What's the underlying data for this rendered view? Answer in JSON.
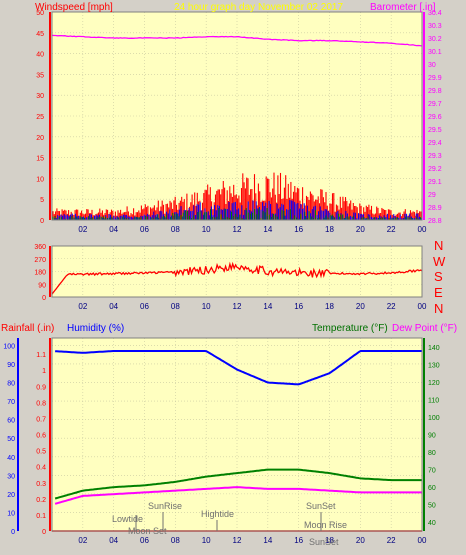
{
  "colors": {
    "plot_bg": "#ffffc0",
    "page_bg": "#d4d0c8",
    "grid": "#c8c8a0",
    "red": "#ff0000",
    "blue": "#0000ff",
    "green": "#008000",
    "magenta": "#ff00ff",
    "darkgreen": "#007000",
    "title": "#ffff00",
    "annot": "#707070"
  },
  "title": "24 hour graph day   November 02 2017",
  "x_ticks": [
    "02",
    "04",
    "06",
    "08",
    "10",
    "12",
    "14",
    "16",
    "18",
    "20",
    "22",
    "00"
  ],
  "wind": {
    "left_label": "Windspeed [mph]",
    "right_label": "Barometer [.in]",
    "left_ticks": [
      0,
      5,
      10,
      15,
      20,
      25,
      30,
      35,
      40,
      45,
      50
    ],
    "right_ticks": [
      "28.8",
      "28.9",
      "29",
      "29.1",
      "29.2",
      "29.3",
      "29.4",
      "29.5",
      "29.6",
      "29.7",
      "29.8",
      "29.9",
      "30",
      "30.1",
      "30.2",
      "30.3",
      "30.4"
    ]
  },
  "dir": {
    "left_ticks": [
      0,
      90,
      180,
      270,
      360
    ],
    "compass": [
      "N",
      "W",
      "S",
      "E",
      "N"
    ]
  },
  "bottom": {
    "rain_label": "Rainfall (.in)",
    "hum_label": "Humidity (%)",
    "temp_label": "Temperature (°F)",
    "dew_label": "Dew Point (°F)",
    "hum_ticks": [
      0,
      10,
      20,
      30,
      40,
      50,
      60,
      70,
      80,
      90,
      100
    ],
    "rain_ticks": [
      "0",
      "0.1",
      "0.2",
      "0.3",
      "0.4",
      "0.5",
      "0.6",
      "0.7",
      "0.8",
      "0.9",
      "1",
      "1.1"
    ],
    "temp_ticks": [
      40,
      50,
      60,
      70,
      80,
      90,
      100,
      110,
      120,
      130,
      140
    ],
    "annotations": {
      "lowtide": "Lowtide",
      "moonset": "Moon Set",
      "sunrise": "SunRise",
      "hightide": "Hightide",
      "sunset": "SunSet",
      "moonrise": "Moon Rise",
      "sunset2": "SunSet"
    }
  },
  "chart_data": [
    {
      "type": "line",
      "title": "24 hour graph day   November 02 2017",
      "xlabel": "",
      "ylabel": "Windspeed [mph]",
      "y2label": "Barometer [.in]",
      "x": [
        0,
        2,
        4,
        6,
        8,
        10,
        12,
        14,
        16,
        18,
        20,
        22,
        24
      ],
      "ylim": [
        0,
        50
      ],
      "y2lim": [
        28.8,
        30.4
      ],
      "series": [
        {
          "axis": "right",
          "values": [
            30.22,
            30.21,
            30.2,
            30.2,
            30.2,
            30.21,
            30.21,
            30.19,
            30.18,
            30.18,
            30.17,
            30.16,
            30.14
          ]
        },
        {
          "axis": "left",
          "values": [
            2,
            2,
            2,
            3,
            4,
            6,
            8,
            9,
            7,
            5,
            3,
            2,
            2
          ]
        },
        {
          "axis": "left",
          "values": [
            1,
            1,
            1,
            1,
            2,
            3,
            3,
            3,
            3,
            2,
            1,
            1,
            1
          ]
        }
      ]
    },
    {
      "type": "line",
      "title": "",
      "ylim": [
        0,
        360
      ],
      "x": [
        0,
        1,
        2,
        4,
        6,
        8,
        10,
        12,
        14,
        16,
        18,
        20,
        22,
        24
      ],
      "series": [
        {
          "values": [
            20,
            160,
            160,
            165,
            170,
            175,
            190,
            220,
            180,
            170,
            165,
            165,
            170,
            190
          ]
        }
      ]
    },
    {
      "type": "line",
      "title": "",
      "ylabel": "Rainfall (.in)",
      "y2label": "Temperature (°F)",
      "x": [
        0,
        2,
        4,
        6,
        8,
        10,
        12,
        14,
        16,
        18,
        20,
        22,
        24
      ],
      "ylim": [
        0,
        1.1
      ],
      "y2lim": [
        40,
        145
      ],
      "series": [
        {
          "name": "Humidity (%)",
          "axis": "humidity",
          "values": [
            97,
            96,
            97,
            97,
            97,
            97,
            87,
            80,
            79,
            85,
            97,
            97,
            97
          ]
        },
        {
          "name": "Temperature (°F)",
          "axis": "right",
          "values": [
            53,
            58,
            60,
            61,
            63,
            66,
            68,
            70,
            70,
            68,
            65,
            64,
            64
          ]
        },
        {
          "name": "Dew Point (°F)",
          "axis": "right",
          "values": [
            50,
            55,
            56,
            57,
            58,
            59,
            60,
            59,
            59,
            58,
            57,
            57,
            57
          ]
        },
        {
          "name": "Rainfall (.in)",
          "axis": "left",
          "values": [
            0,
            0,
            0,
            0,
            0,
            0,
            0,
            0,
            0,
            0,
            0,
            0,
            0
          ]
        }
      ]
    }
  ]
}
